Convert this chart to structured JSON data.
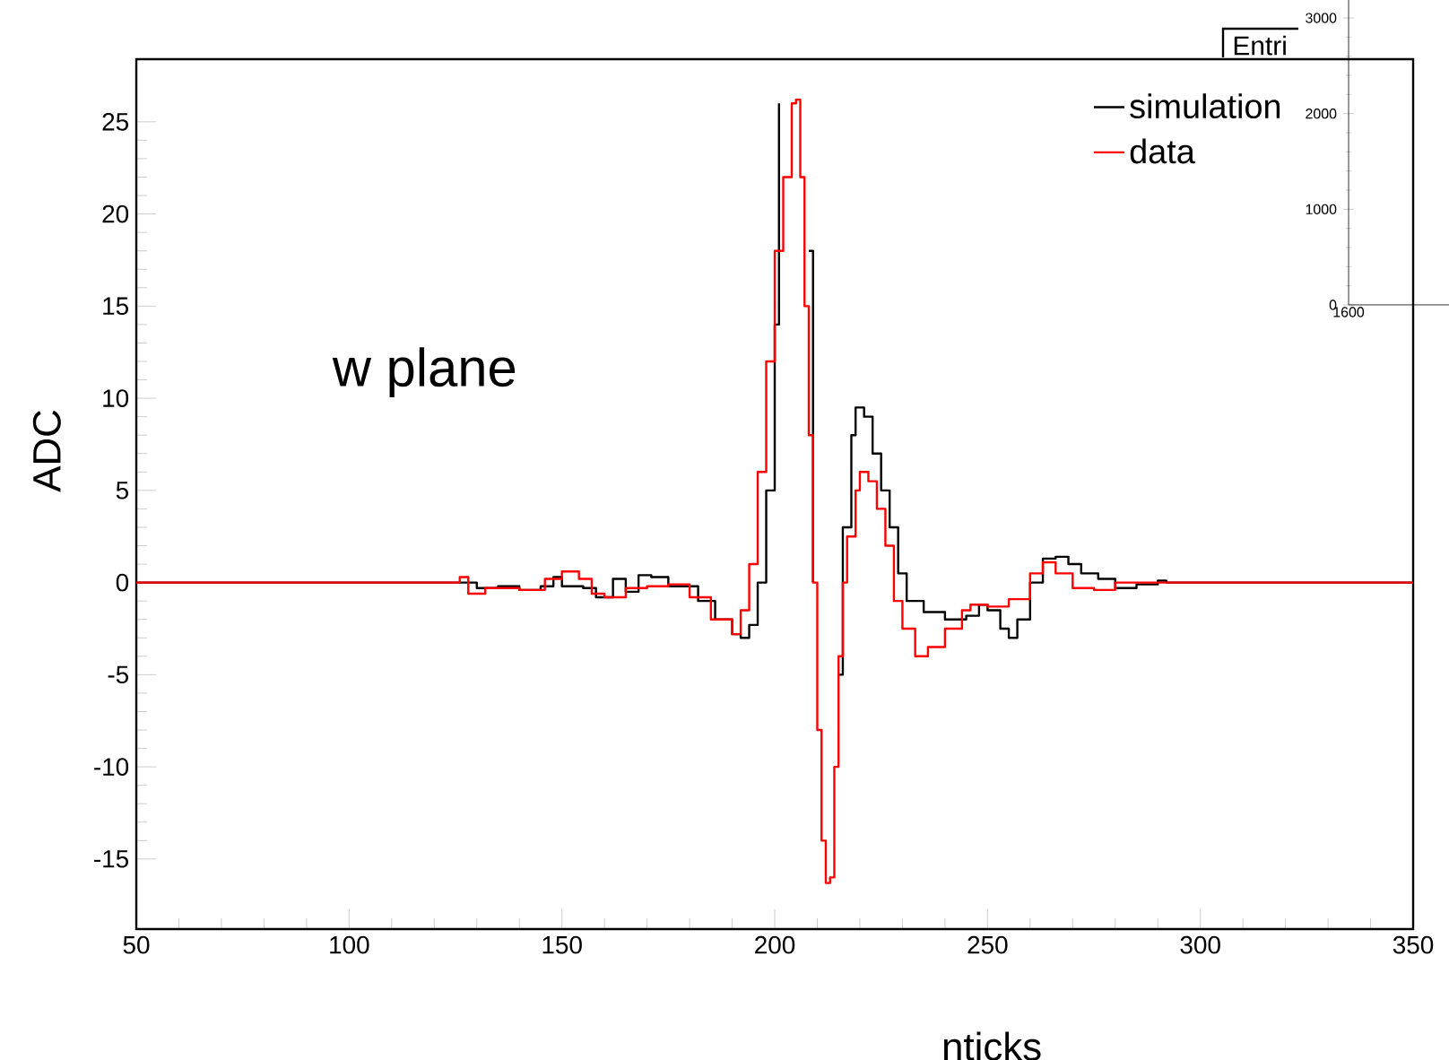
{
  "chart_data": [
    {
      "type": "step",
      "xlabel": "nticks",
      "ylabel": "ADC",
      "annotations": [
        "w plane"
      ],
      "xlim": [
        50,
        350
      ],
      "ylim": [
        -18.8,
        28.4
      ],
      "xticks": [
        50,
        100,
        150,
        200,
        250,
        300,
        350
      ],
      "yticks": [
        -15,
        -10,
        -5,
        0,
        5,
        10,
        15,
        20,
        25
      ],
      "legend": "top right",
      "series": [
        {
          "name": "simulation",
          "color": "#000000",
          "x": [
            50,
            126,
            130,
            135,
            140,
            145,
            148,
            150,
            155,
            158,
            162,
            165,
            168,
            171,
            175,
            178,
            182,
            186,
            190,
            192,
            194,
            196,
            198,
            200,
            201,
            202,
            207,
            208,
            209,
            210,
            214,
            215,
            216,
            218,
            219,
            221,
            223,
            225,
            227,
            229,
            231,
            235,
            240,
            245,
            248,
            250,
            253,
            255,
            257,
            260,
            263,
            266,
            269,
            272,
            276,
            280,
            285,
            290,
            292,
            350
          ],
          "values": [
            0,
            0,
            -0.3,
            -0.2,
            -0.4,
            -0.2,
            0.3,
            -0.2,
            -0.3,
            -0.8,
            0.2,
            -0.5,
            0.4,
            0.3,
            -0.2,
            -0.2,
            -1,
            -2,
            -2.8,
            -3,
            -2.3,
            0,
            5,
            14,
            26,
            null,
            null,
            18,
            0,
            null,
            null,
            -5,
            3,
            8,
            9.5,
            9,
            7,
            5,
            3,
            0.5,
            -1,
            -1.6,
            -2,
            -1.8,
            -1.2,
            -1.5,
            -2.5,
            -3,
            -2,
            0,
            1.3,
            1.4,
            1,
            0.5,
            0.2,
            -0.3,
            -0.1,
            0.1,
            0,
            0
          ]
        },
        {
          "name": "data",
          "color": "#ff0000",
          "x": [
            50,
            126,
            128,
            132,
            140,
            146,
            150,
            154,
            157,
            160,
            165,
            170,
            175,
            180,
            185,
            190,
            192,
            194,
            196,
            198,
            200,
            202,
            204,
            205,
            206,
            207,
            208,
            209,
            210,
            211,
            212,
            213,
            214,
            215,
            216,
            217,
            219,
            220,
            222,
            224,
            226,
            228,
            230,
            233,
            236,
            240,
            244,
            246,
            250,
            255,
            260,
            263,
            266,
            270,
            275,
            280,
            350
          ],
          "values": [
            0,
            0.3,
            -0.6,
            -0.3,
            -0.4,
            0.2,
            0.6,
            0.2,
            -0.6,
            -0.8,
            -0.3,
            -0.2,
            -0.1,
            -0.8,
            -2,
            -2.8,
            -1.5,
            1,
            6,
            12,
            18,
            22,
            26,
            26.2,
            22,
            15,
            8,
            0,
            -8,
            -14,
            -16.3,
            -16,
            -10,
            -4,
            0,
            2.5,
            5,
            6,
            5.5,
            4,
            2,
            -1,
            -2.5,
            -4,
            -3.5,
            -2.5,
            -1.5,
            -1.2,
            -1.3,
            -0.9,
            0.5,
            1.1,
            0.5,
            -0.3,
            -0.4,
            0,
            0
          ]
        }
      ]
    },
    {
      "type": "line",
      "categories": [
        null
      ],
      "values": [
        null
      ],
      "ylim": [
        0,
        3200
      ],
      "yticks": [
        0,
        1000,
        2000,
        3000
      ],
      "annotations": [
        "Entri",
        "1600"
      ]
    }
  ]
}
